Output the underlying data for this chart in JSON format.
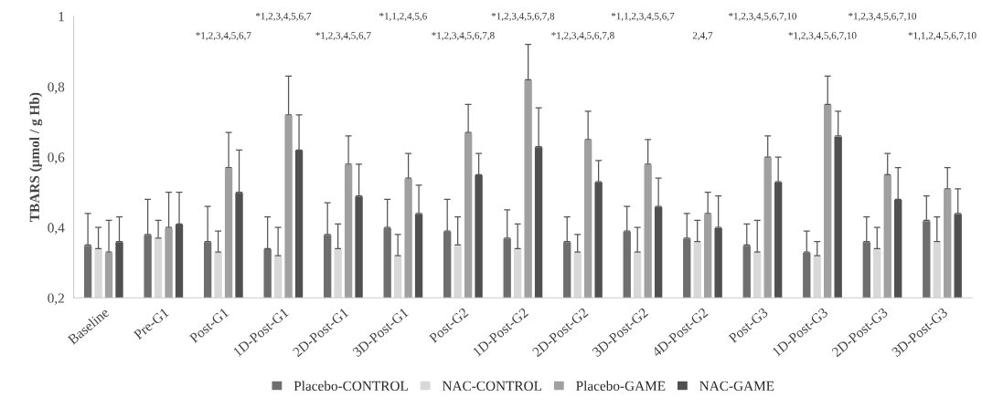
{
  "chart_data": {
    "type": "bar",
    "ylabel": "TBARS (µmol / g Hb)",
    "categories": [
      "Baseline",
      "Pre-G1",
      "Post-G1",
      "1D-Post-G1",
      "2D-Post-G1",
      "3D-Post-G1",
      "Post-G2",
      "1D-Post-G2",
      "2D-Post-G2",
      "3D-Post-G2",
      "4D-Post-G2",
      "Post-G3",
      "1D-Post-G3",
      "2D-Post-G3",
      "3D-Post-G3"
    ],
    "series": [
      {
        "name": "Placebo-CONTROL",
        "color": "#6e6e6e",
        "values": [
          0.35,
          0.38,
          0.36,
          0.34,
          0.38,
          0.4,
          0.39,
          0.37,
          0.36,
          0.39,
          0.37,
          0.35,
          0.33,
          0.36,
          0.42
        ],
        "errors": [
          [
            0.35,
            0.44
          ],
          [
            0.38,
            0.48
          ],
          [
            0.36,
            0.46
          ],
          [
            0.34,
            0.43
          ],
          [
            0.38,
            0.47
          ],
          [
            0.4,
            0.48
          ],
          [
            0.39,
            0.48
          ],
          [
            0.37,
            0.45
          ],
          [
            0.36,
            0.43
          ],
          [
            0.39,
            0.46
          ],
          [
            0.37,
            0.44
          ],
          [
            0.35,
            0.41
          ],
          [
            0.33,
            0.39
          ],
          [
            0.36,
            0.43
          ],
          [
            0.42,
            0.49
          ]
        ]
      },
      {
        "name": "NAC-CONTROL",
        "color": "#d8d8d8",
        "values": [
          0.34,
          0.37,
          0.33,
          0.32,
          0.34,
          0.32,
          0.35,
          0.34,
          0.33,
          0.33,
          0.36,
          0.33,
          0.32,
          0.34,
          0.36
        ],
        "errors": [
          [
            0.34,
            0.4
          ],
          [
            0.37,
            0.42
          ],
          [
            0.33,
            0.39
          ],
          [
            0.32,
            0.4
          ],
          [
            0.34,
            0.41
          ],
          [
            0.32,
            0.38
          ],
          [
            0.35,
            0.43
          ],
          [
            0.34,
            0.41
          ],
          [
            0.33,
            0.38
          ],
          [
            0.33,
            0.4
          ],
          [
            0.36,
            0.42
          ],
          [
            0.33,
            0.42
          ],
          [
            0.32,
            0.36
          ],
          [
            0.34,
            0.4
          ],
          [
            0.36,
            0.43
          ]
        ]
      },
      {
        "name": "Placebo-GAME",
        "color": "#a0a0a0",
        "values": [
          0.33,
          0.4,
          0.57,
          0.72,
          0.58,
          0.54,
          0.67,
          0.82,
          0.65,
          0.58,
          0.44,
          0.6,
          0.75,
          0.55,
          0.51
        ],
        "errors": [
          [
            0.33,
            0.42
          ],
          [
            0.4,
            0.5
          ],
          [
            0.57,
            0.67
          ],
          [
            0.72,
            0.83
          ],
          [
            0.58,
            0.66
          ],
          [
            0.54,
            0.61
          ],
          [
            0.67,
            0.75
          ],
          [
            0.82,
            0.92
          ],
          [
            0.65,
            0.73
          ],
          [
            0.58,
            0.65
          ],
          [
            0.44,
            0.5
          ],
          [
            0.6,
            0.66
          ],
          [
            0.75,
            0.83
          ],
          [
            0.55,
            0.61
          ],
          [
            0.51,
            0.57
          ]
        ]
      },
      {
        "name": "NAC-GAME",
        "color": "#505050",
        "values": [
          0.36,
          0.41,
          0.5,
          0.62,
          0.49,
          0.44,
          0.55,
          0.63,
          0.53,
          0.46,
          0.4,
          0.53,
          0.66,
          0.48,
          0.44
        ],
        "errors": [
          [
            0.36,
            0.43
          ],
          [
            0.41,
            0.5
          ],
          [
            0.5,
            0.62
          ],
          [
            0.62,
            0.72
          ],
          [
            0.49,
            0.58
          ],
          [
            0.44,
            0.52
          ],
          [
            0.55,
            0.61
          ],
          [
            0.63,
            0.74
          ],
          [
            0.53,
            0.59
          ],
          [
            0.46,
            0.54
          ],
          [
            0.4,
            0.49
          ],
          [
            0.53,
            0.6
          ],
          [
            0.66,
            0.73
          ],
          [
            0.48,
            0.57
          ],
          [
            0.44,
            0.51
          ]
        ]
      }
    ],
    "ylim": [
      0.2,
      1
    ],
    "yticks": [
      {
        "value": 0.2,
        "label": "0,2"
      },
      {
        "value": 0.4,
        "label": "0,4"
      },
      {
        "value": 0.6,
        "label": "0,6"
      },
      {
        "value": 0.8,
        "label": "0,8"
      },
      1
    ],
    "grid": false,
    "legend": "bottom",
    "annotations": [
      "*1,2,3,4,5,6,7",
      "*1,2,3,4,5,6,7",
      "*1,2,3,4,5,6,7",
      "*1,1,2,4,5,6",
      "*1,2,3,4,5,6,7,8",
      "*1,2,3,4,5,6,7,8",
      "*1,2,3,4,5,6,7,8",
      "*1,1,2,3,4,5,6,7",
      "2,4,7",
      "*1,2,3,4,5,6,7,10",
      "*1,2,3,4,5,6,7,10",
      "*1,2,3,4,5,6,7,10",
      "*1,1,2,4,5,6,7,10"
    ]
  }
}
